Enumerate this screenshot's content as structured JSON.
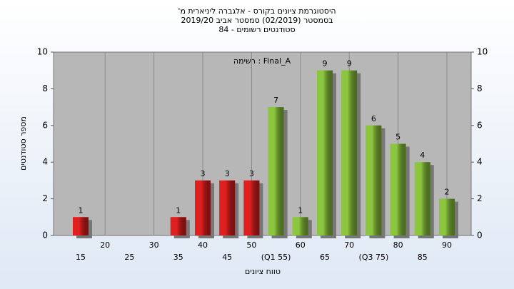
{
  "chart_data": {
    "type": "bar",
    "title": [
      "'היסטוגרמת ציונים בקורס - אלגברה ליניארית מ",
      "בסמסטר  (02/2019)  סמסטר אביב 2019/20",
      "סטודנטים רשומים - 84"
    ],
    "annotation": "רשימה : Final_A",
    "x_label": "טווח ציונים",
    "y_label": "מספר סטודנטים",
    "categories": [
      "15",
      "20",
      "25",
      "30",
      "35",
      "40",
      "45",
      "50",
      "(Q1 55)",
      "60",
      "65",
      "70",
      "(Q3 75)",
      "80",
      "85",
      "90"
    ],
    "values": [
      1,
      0,
      0,
      0,
      1,
      3,
      3,
      3,
      7,
      1,
      9,
      9,
      6,
      5,
      4,
      2
    ],
    "colors": [
      "#e02020",
      "#e02020",
      "#e02020",
      "#e02020",
      "#e02020",
      "#e02020",
      "#e02020",
      "#e02020",
      "#8cc63f",
      "#8cc63f",
      "#8cc63f",
      "#8cc63f",
      "#8cc63f",
      "#8cc63f",
      "#8cc63f",
      "#8cc63f"
    ],
    "ylim": [
      0,
      10
    ],
    "yticks": [
      0,
      2,
      4,
      6,
      8,
      10
    ]
  }
}
